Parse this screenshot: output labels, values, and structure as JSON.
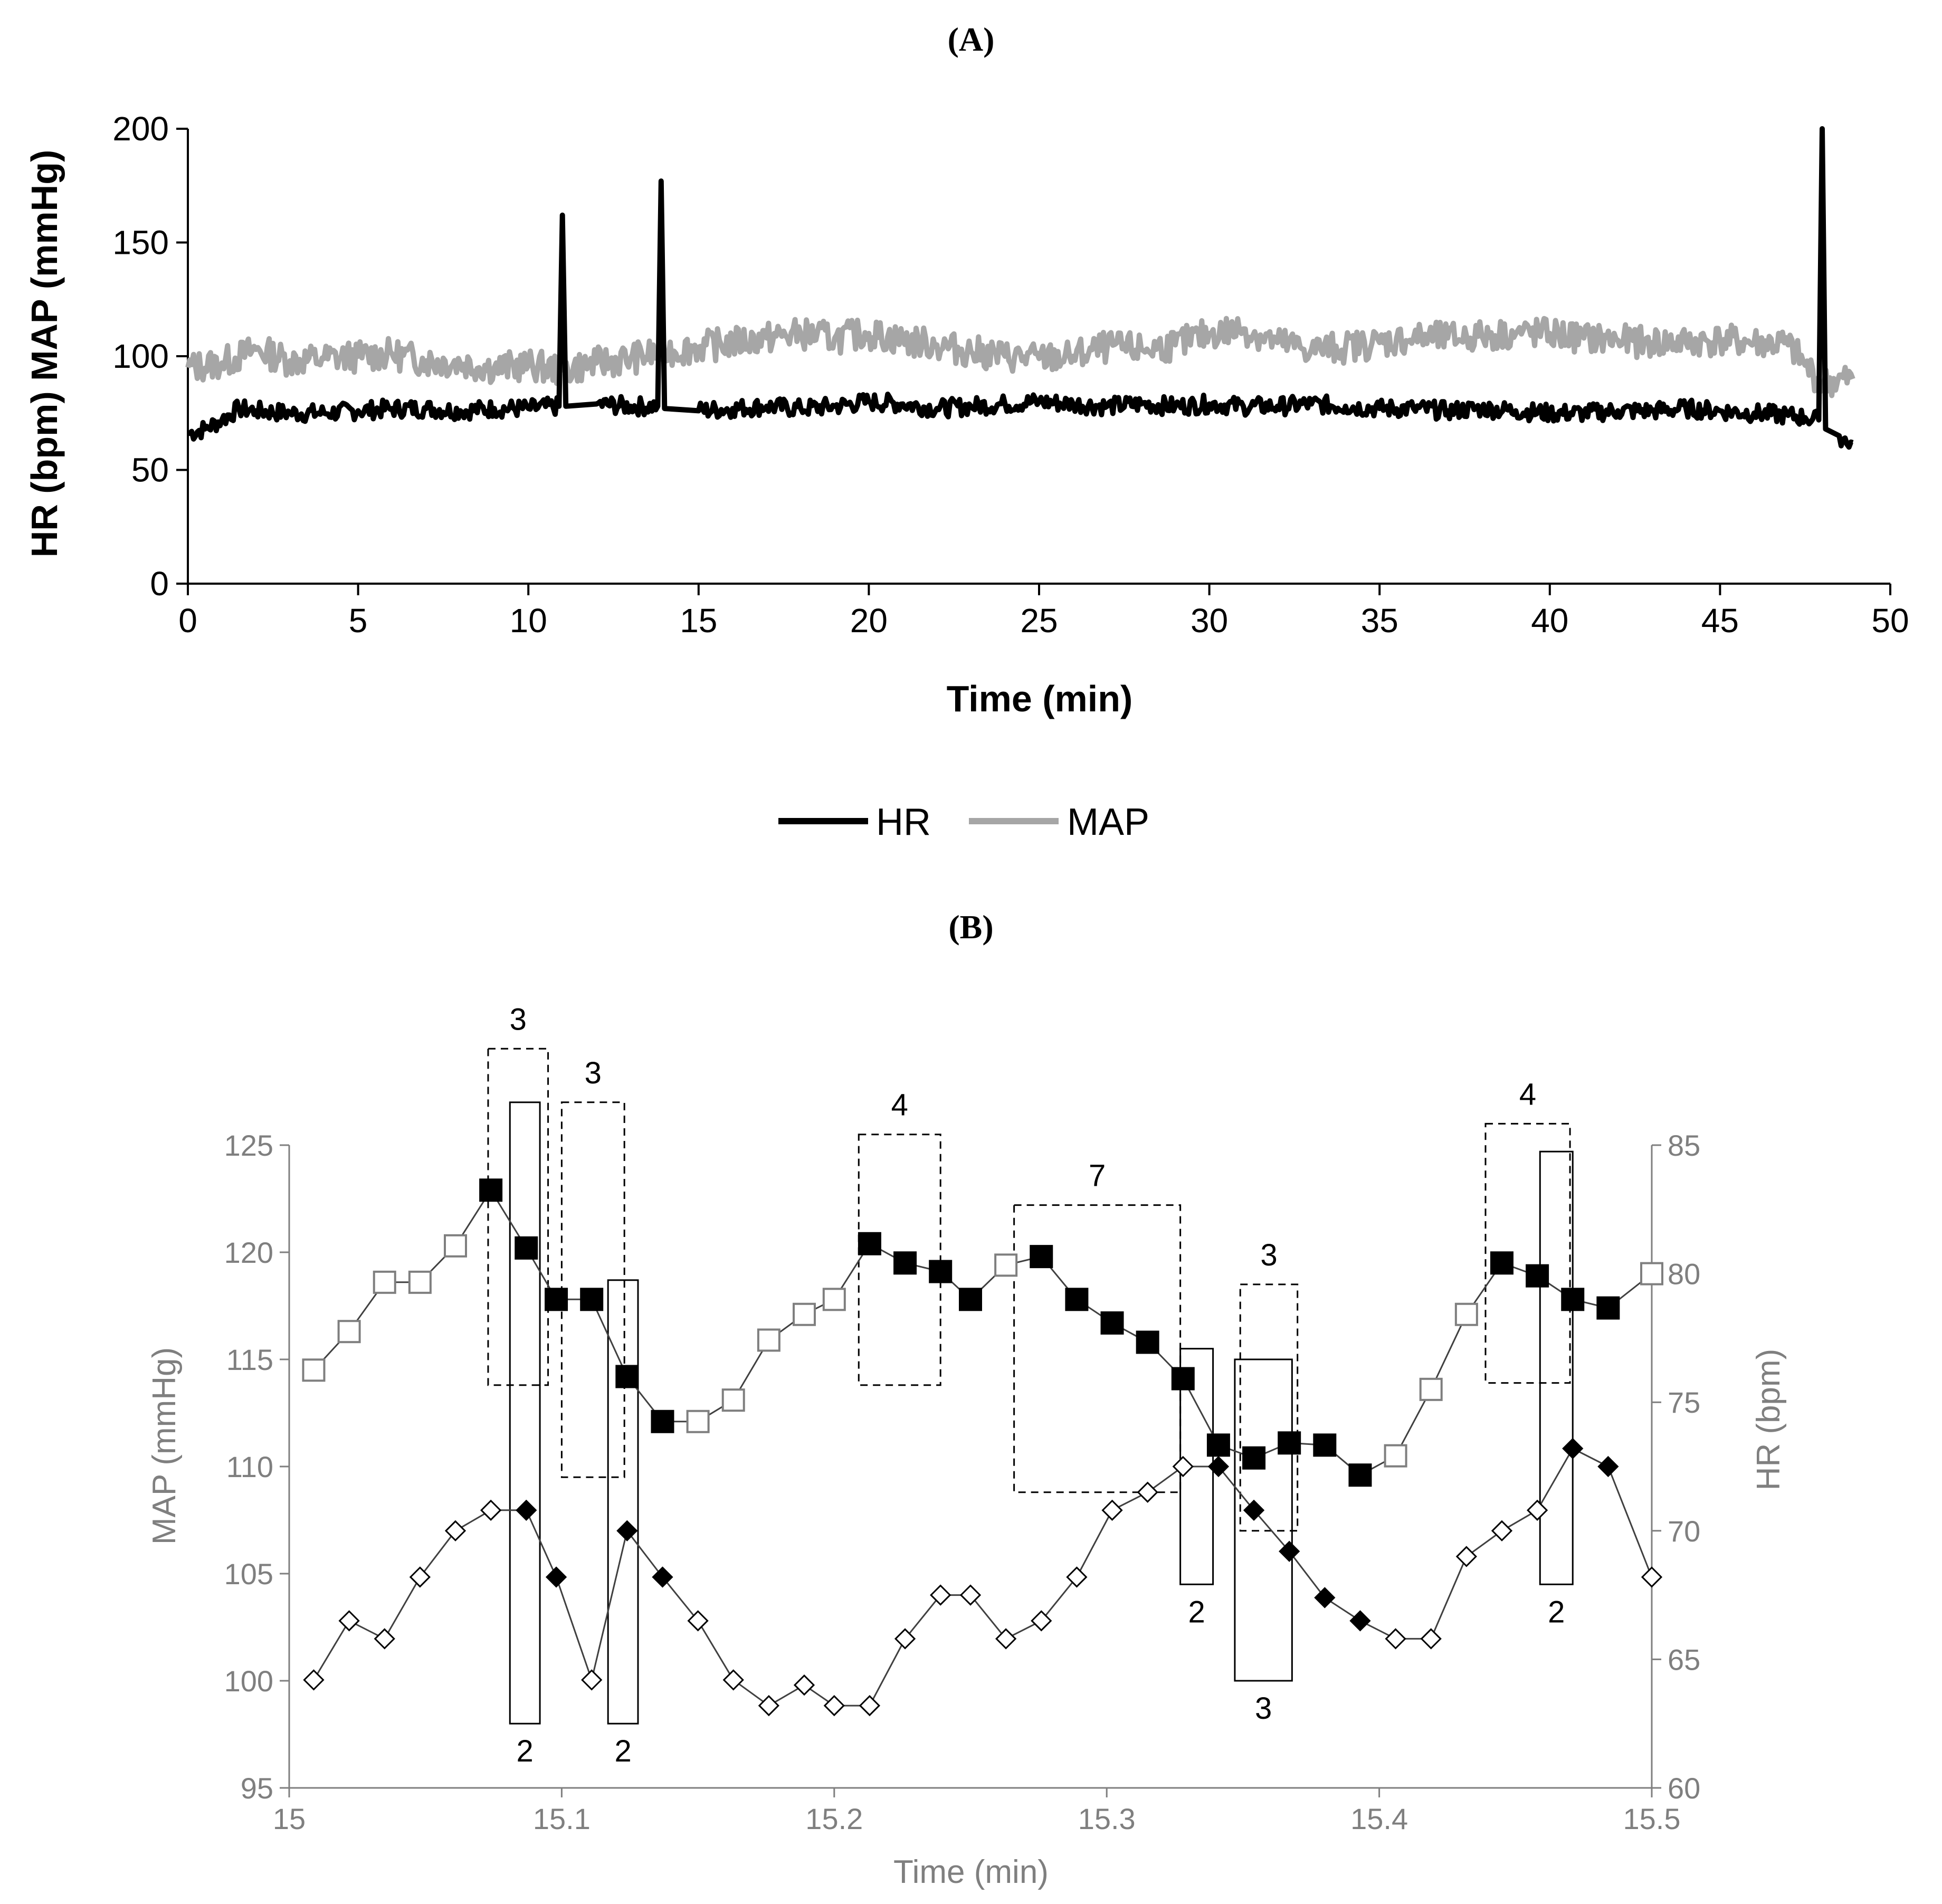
{
  "chart_data": [
    {
      "panel": "(A)",
      "type": "line",
      "xlabel": "Time (min)",
      "ylabel": "HR (bpm) MAP (mmHg)",
      "xlim": [
        0,
        50
      ],
      "ylim": [
        0,
        200
      ],
      "xticks": [
        "0",
        "5",
        "10",
        "15",
        "20",
        "25",
        "30",
        "35",
        "40",
        "45",
        "50"
      ],
      "yticks": [
        "0",
        "50",
        "100",
        "150",
        "200"
      ],
      "legend_position": "bottom-center",
      "series": [
        {
          "name": "HR",
          "color": "#000000",
          "x": [
            0,
            0.5,
            1,
            1.5,
            2,
            3,
            4,
            5,
            6,
            7,
            8,
            9,
            10,
            10.9,
            11,
            11.1,
            12,
            13,
            13.8,
            13.9,
            14,
            15,
            16,
            17,
            18,
            19,
            20,
            21,
            22,
            23,
            24,
            25,
            26,
            27,
            28,
            29,
            30,
            31,
            32,
            33,
            34,
            35,
            36,
            37,
            38,
            39,
            40,
            41,
            42,
            43,
            44,
            45,
            46,
            47,
            47.5,
            47.9,
            48,
            48.1,
            48.5,
            48.9
          ],
          "values": [
            66,
            68,
            72,
            77,
            76,
            75,
            75,
            76,
            77,
            77,
            76,
            77,
            77,
            78,
            162,
            78,
            79,
            78,
            78,
            177,
            77,
            76,
            77,
            78,
            77,
            78,
            80,
            79,
            77,
            78,
            79,
            80,
            79,
            78,
            79,
            78,
            79,
            78,
            78,
            79,
            78,
            77,
            77,
            76,
            77,
            76,
            75,
            75,
            76,
            76,
            77,
            76,
            75,
            74,
            73,
            72,
            200,
            68,
            65,
            62
          ]
        },
        {
          "name": "MAP",
          "color": "#a6a6a6",
          "x": [
            0,
            1,
            2,
            3,
            4,
            5,
            6,
            7,
            8,
            9,
            10,
            11,
            12,
            13,
            14,
            15,
            16,
            17,
            18,
            19,
            20,
            21,
            22,
            23,
            24,
            25,
            26,
            27,
            28,
            29,
            30,
            31,
            32,
            33,
            34,
            35,
            36,
            37,
            38,
            39,
            40,
            41,
            42,
            43,
            44,
            45,
            46,
            47,
            47.5,
            48,
            48.9
          ],
          "values": [
            95,
            97,
            103,
            98,
            99,
            100,
            101,
            98,
            97,
            95,
            96,
            94,
            97,
            99,
            102,
            104,
            106,
            108,
            110,
            108,
            110,
            107,
            105,
            102,
            100,
            99,
            100,
            104,
            103,
            105,
            110,
            112,
            106,
            103,
            104,
            106,
            108,
            108,
            109,
            110,
            110,
            108,
            107,
            106,
            106,
            107,
            106,
            105,
            96,
            88,
            90
          ]
        }
      ]
    },
    {
      "panel": "(B)",
      "type": "line",
      "xlabel": "Time (min)",
      "ylabel_left": "MAP (mmHg)",
      "ylabel_right": "HR (bpm)",
      "xlim": [
        15,
        15.5
      ],
      "ylim_left": [
        95,
        125
      ],
      "ylim_right": [
        60,
        85
      ],
      "xticks": [
        "15",
        "15.1",
        "15.2",
        "15.3",
        "15.4",
        "15.5"
      ],
      "yticks_left": [
        "95",
        "100",
        "105",
        "110",
        "115",
        "120",
        "125"
      ],
      "yticks_right": [
        "60",
        "65",
        "70",
        "75",
        "80",
        "85"
      ],
      "series": [
        {
          "name": "MAP",
          "axis": "left",
          "marker": "square",
          "x": [
            15.009,
            15.022,
            15.035,
            15.048,
            15.061,
            15.074,
            15.087,
            15.098,
            15.111,
            15.124,
            15.137,
            15.15,
            15.163,
            15.176,
            15.189,
            15.2,
            15.213,
            15.226,
            15.239,
            15.25,
            15.263,
            15.276,
            15.289,
            15.302,
            15.315,
            15.328,
            15.341,
            15.354,
            15.367,
            15.38,
            15.393,
            15.406,
            15.419,
            15.432,
            15.445,
            15.458,
            15.471,
            15.484,
            15.5
          ],
          "values": [
            114.5,
            116.3,
            118.6,
            118.6,
            120.3,
            122.9,
            120.2,
            117.8,
            117.8,
            114.2,
            112.1,
            112.1,
            113.1,
            115.9,
            117.1,
            117.8,
            120.4,
            119.5,
            119.1,
            117.8,
            119.4,
            119.8,
            117.8,
            116.7,
            115.8,
            114.1,
            111.0,
            110.4,
            111.1,
            111.0,
            109.6,
            110.5,
            113.6,
            117.1,
            119.5,
            118.9,
            117.8,
            117.4,
            119.0
          ],
          "filled": [
            false,
            false,
            false,
            false,
            false,
            true,
            true,
            true,
            true,
            true,
            true,
            false,
            false,
            false,
            false,
            false,
            true,
            true,
            true,
            true,
            false,
            true,
            true,
            true,
            true,
            true,
            true,
            true,
            true,
            true,
            true,
            false,
            false,
            false,
            true,
            true,
            true,
            true,
            false
          ]
        },
        {
          "name": "HR",
          "axis": "right",
          "marker": "diamond",
          "x": [
            15.009,
            15.022,
            15.035,
            15.048,
            15.061,
            15.074,
            15.087,
            15.098,
            15.111,
            15.124,
            15.137,
            15.15,
            15.163,
            15.176,
            15.189,
            15.2,
            15.213,
            15.226,
            15.239,
            15.25,
            15.263,
            15.276,
            15.289,
            15.302,
            15.315,
            15.328,
            15.341,
            15.354,
            15.367,
            15.38,
            15.393,
            15.406,
            15.419,
            15.432,
            15.445,
            15.458,
            15.471,
            15.484,
            15.5
          ],
          "values": [
            64.2,
            66.5,
            65.8,
            68.2,
            70.0,
            70.8,
            70.8,
            68.2,
            64.2,
            70.0,
            68.2,
            66.5,
            64.2,
            63.2,
            64.0,
            63.2,
            63.2,
            65.8,
            67.5,
            67.5,
            65.8,
            66.5,
            68.2,
            70.8,
            71.5,
            72.5,
            72.5,
            70.8,
            69.2,
            67.4,
            66.5,
            65.8,
            65.8,
            69.0,
            70.0,
            70.8,
            73.2,
            72.5,
            68.2
          ],
          "filled": [
            false,
            false,
            false,
            false,
            false,
            false,
            true,
            true,
            false,
            true,
            true,
            false,
            false,
            false,
            false,
            false,
            false,
            false,
            false,
            false,
            false,
            false,
            false,
            false,
            false,
            false,
            true,
            true,
            true,
            true,
            true,
            false,
            false,
            false,
            false,
            false,
            true,
            true,
            false
          ]
        }
      ],
      "annotations": [
        {
          "style": "dashed",
          "label": "3",
          "x0": 15.073,
          "x1": 15.095,
          "y0": 113.8,
          "y1": 129.5,
          "label_pos": "top"
        },
        {
          "style": "solid",
          "label": "2",
          "x0": 15.081,
          "x1": 15.092,
          "y0": 98.0,
          "y1": 127.0,
          "label_pos": "bottom"
        },
        {
          "style": "dashed",
          "label": "3",
          "x0": 15.1,
          "x1": 15.123,
          "y0": 109.5,
          "y1": 127.0,
          "label_pos": "top"
        },
        {
          "style": "solid",
          "label": "2",
          "x0": 15.117,
          "x1": 15.128,
          "y0": 98.0,
          "y1": 118.7,
          "label_pos": "bottom"
        },
        {
          "style": "dashed",
          "label": "4",
          "x0": 15.209,
          "x1": 15.239,
          "y0": 113.8,
          "y1": 125.5,
          "label_pos": "top"
        },
        {
          "style": "dashed",
          "label": "7",
          "x0": 15.266,
          "x1": 15.327,
          "y0": 108.8,
          "y1": 122.2,
          "label_pos": "top"
        },
        {
          "style": "solid",
          "label": "2",
          "x0": 15.327,
          "x1": 15.339,
          "y0": 104.5,
          "y1": 115.5,
          "label_pos": "bottom"
        },
        {
          "style": "dashed",
          "label": "3",
          "x0": 15.349,
          "x1": 15.37,
          "y0": 107.0,
          "y1": 118.5,
          "label_pos": "top"
        },
        {
          "style": "solid",
          "label": "3",
          "x0": 15.347,
          "x1": 15.368,
          "y0": 100.0,
          "y1": 115.0,
          "label_pos": "bottom"
        },
        {
          "style": "dashed",
          "label": "4",
          "x0": 15.439,
          "x1": 15.47,
          "y0": 113.9,
          "y1": 126.0,
          "label_pos": "top"
        },
        {
          "style": "solid",
          "label": "2",
          "x0": 15.459,
          "x1": 15.471,
          "y0": 104.5,
          "y1": 124.7,
          "label_pos": "bottom"
        }
      ]
    }
  ]
}
